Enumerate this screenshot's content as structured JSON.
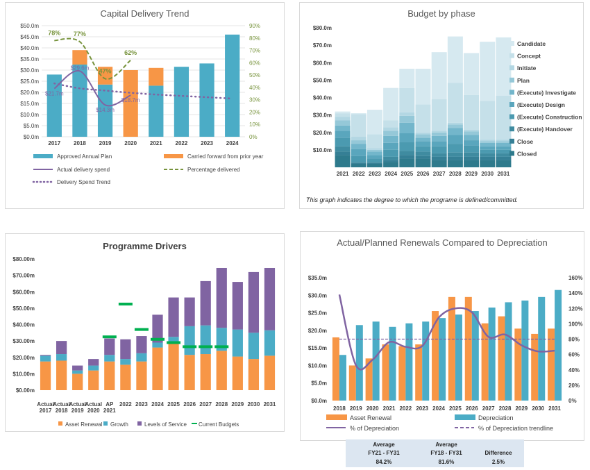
{
  "chart_data": [
    {
      "type": "bar",
      "title": "Capital Delivery Trend",
      "categories": [
        "2017",
        "2018",
        "2019",
        "2020",
        "2021",
        "2022",
        "2023",
        "2024"
      ],
      "ylim": [
        0,
        50
      ],
      "yticks": [
        "$0.0m",
        "$5.0m",
        "$10.0m",
        "$15.0m",
        "$20.0m",
        "$25.0m",
        "$30.0m",
        "$35.0m",
        "$40.0m",
        "$45.0m",
        "$50.0m"
      ],
      "y2lim": [
        0,
        90
      ],
      "y2ticks": [
        "0%",
        "10%",
        "20%",
        "30%",
        "40%",
        "50%",
        "60%",
        "70%",
        "80%",
        "90%"
      ],
      "series": [
        {
          "name": "Approved Annual Plan",
          "type": "bar",
          "color": "#4bacc6",
          "values": [
            28.0,
            32.5,
            23.5,
            0,
            23.0,
            31.5,
            33.0,
            46.0
          ]
        },
        {
          "name": "Carried forward from prior year",
          "type": "bar-stacked",
          "color": "#f79646",
          "values": [
            0,
            6.5,
            8.0,
            30.0,
            8.0,
            0,
            0,
            0
          ]
        },
        {
          "name": "Actual delivery spend",
          "type": "line",
          "color": "#8064a2",
          "values": [
            21.7,
            29.6,
            14.3,
            18.7,
            null,
            null,
            null,
            null
          ]
        },
        {
          "name": "Percentage delivered",
          "type": "line-secondary",
          "color": "#77933c",
          "values": [
            78,
            77,
            47,
            62,
            null,
            null,
            null,
            null
          ]
        },
        {
          "name": "Delivery Spend Trend",
          "type": "trend-dotted",
          "color": "#8064a2",
          "values": [
            24,
            21.8,
            20.8,
            19.8,
            19,
            18.4,
            17.8,
            17.2
          ]
        }
      ],
      "data_labels": [
        "$21.7m",
        "$29.6m",
        "$14.3m",
        "$18.7m",
        "78%",
        "77%",
        "47%",
        "62%"
      ],
      "legend": [
        "Approved Annual Plan",
        "Carried forward from prior year",
        "Actual delivery spend",
        "Percentage delivered",
        "Delivery Spend Trend"
      ]
    },
    {
      "type": "bar",
      "title": "Budget by phase",
      "categories": [
        "2021",
        "2022",
        "2023",
        "2024",
        "2025",
        "2026",
        "2027",
        "2028",
        "2029",
        "2030",
        "2031"
      ],
      "ylim": [
        0,
        80
      ],
      "yticks": [
        "$10.0m",
        "$20.0m",
        "$30.0m",
        "$40.0m",
        "$50.0m",
        "$60.0m",
        "$70.0m",
        "$80.0m"
      ],
      "series": [
        {
          "name": "Closed",
          "color": "#2e7a8c",
          "values": [
            7,
            2,
            2,
            3,
            5,
            5,
            4,
            4,
            4,
            4,
            4
          ]
        },
        {
          "name": "Close",
          "color": "#357f95",
          "values": [
            2,
            0.5,
            0.5,
            1,
            2,
            1.5,
            2,
            2,
            2,
            2,
            2
          ]
        },
        {
          "name": "(Execute) Handover",
          "color": "#3f8ba0",
          "values": [
            3,
            0.5,
            0.5,
            2,
            2.5,
            2.5,
            2,
            2.5,
            2.5,
            2,
            2
          ]
        },
        {
          "name": "(Execute) Construction",
          "color": "#4b9ab0",
          "values": [
            5,
            3.5,
            2,
            4,
            5,
            3,
            4,
            5,
            4,
            2,
            2
          ]
        },
        {
          "name": "(Execute) Design",
          "color": "#5aa6bd",
          "values": [
            4,
            4,
            2,
            4,
            5,
            3,
            3,
            5,
            3,
            2,
            2
          ]
        },
        {
          "name": "(Execute) Investigate",
          "color": "#73b6cb",
          "values": [
            3,
            3,
            2,
            4,
            6,
            2,
            3,
            4,
            3,
            2,
            2
          ]
        },
        {
          "name": "Plan",
          "color": "#95c8d8",
          "values": [
            3,
            2,
            1,
            3,
            4,
            2,
            2,
            2,
            2,
            1,
            1
          ]
        },
        {
          "name": "Initiate",
          "color": "#b3d7e3",
          "values": [
            2,
            2,
            1,
            2,
            2,
            1,
            1,
            1,
            1,
            1,
            1
          ]
        },
        {
          "name": "Concept",
          "color": "#c5e0e9",
          "values": [
            2,
            13,
            8,
            4,
            14,
            16,
            18,
            23,
            20,
            22,
            25
          ]
        },
        {
          "name": "Candidate",
          "color": "#d6e9f0",
          "values": [
            1,
            0.5,
            14,
            18.5,
            11,
            20.5,
            27,
            26.5,
            24,
            34,
            33.5
          ]
        }
      ],
      "legend": [
        "Candidate",
        "Concept",
        "Initiate",
        "Plan",
        "(Execute) Investigate",
        "(Execute) Design",
        "(Execute) Construction",
        "(Execute) Handover",
        "Close",
        "Closed"
      ],
      "note": "This graph indicates the degree to which the programe is defined/committed."
    },
    {
      "type": "bar",
      "title": "Programme Drivers",
      "categories": [
        "Actual 2017",
        "Actual 2018",
        "Actual 2019",
        "Actual 2020",
        "AP 2021",
        "2022",
        "2023",
        "2024",
        "2025",
        "2026",
        "2027",
        "2028",
        "2029",
        "2030",
        "2031"
      ],
      "category_lines": [
        [
          "Actual",
          "2017"
        ],
        [
          "Actual",
          "2018"
        ],
        [
          "Actual",
          "2019"
        ],
        [
          "Actual",
          "2020"
        ],
        [
          "AP",
          "2021"
        ],
        [
          "2022",
          ""
        ],
        [
          "2023",
          ""
        ],
        [
          "2024",
          ""
        ],
        [
          "2025",
          ""
        ],
        [
          "2026",
          ""
        ],
        [
          "2027",
          ""
        ],
        [
          "2028",
          ""
        ],
        [
          "2029",
          ""
        ],
        [
          "2030",
          ""
        ],
        [
          "2031",
          ""
        ]
      ],
      "ylim": [
        0,
        80
      ],
      "yticks": [
        "$0.00m",
        "$10.00m",
        "$20.00m",
        "$30.00m",
        "$40.00m",
        "$50.00m",
        "$60.00m",
        "$70.00m",
        "$80.00m"
      ],
      "series": [
        {
          "name": "Asset Renewal",
          "color": "#f79646",
          "values": [
            17.5,
            18,
            10,
            12,
            17.5,
            15.5,
            17.5,
            26,
            28.5,
            21.5,
            22,
            24,
            20.5,
            19,
            21
          ]
        },
        {
          "name": "Growth",
          "color": "#4bacc6",
          "values": [
            3.5,
            4,
            2,
            3,
            4,
            3.5,
            5,
            3,
            4,
            17.5,
            17.5,
            14,
            16.5,
            16,
            15.5
          ]
        },
        {
          "name": "Levels of Service",
          "color": "#8064a2",
          "values": [
            0.5,
            8,
            3,
            4,
            10,
            12,
            10.5,
            17,
            24,
            17.5,
            27,
            36.5,
            29,
            37,
            38
          ]
        },
        {
          "name": "Current Budgets",
          "color": "#00b050",
          "values": [
            null,
            null,
            null,
            null,
            32.5,
            52.5,
            37,
            31,
            29,
            26.5,
            26.5,
            26.5,
            null,
            null,
            null
          ]
        }
      ],
      "legend": [
        "Asset Renewal",
        "Growth",
        "Levels of Service",
        "Current Budgets"
      ]
    },
    {
      "type": "bar",
      "title": "Actual/Planned Renewals Compared to Depreciation",
      "categories": [
        "2018",
        "2019",
        "2020",
        "2021",
        "2022",
        "2023",
        "2024",
        "2025",
        "2026",
        "2027",
        "2028",
        "2029",
        "2030",
        "2031"
      ],
      "ylim": [
        0,
        35
      ],
      "yticks": [
        "$0.0m",
        "$5.0m",
        "$10.0m",
        "$15.0m",
        "$20.0m",
        "$25.0m",
        "$30.0m",
        "$35.0m"
      ],
      "y2lim": [
        0,
        160
      ],
      "y2ticks": [
        "0%",
        "20%",
        "40%",
        "60%",
        "80%",
        "100%",
        "120%",
        "140%",
        "160%"
      ],
      "series": [
        {
          "name": "Asset Renewal",
          "color": "#f79646",
          "values": [
            18,
            10,
            12,
            16,
            15.5,
            16,
            25.5,
            29.5,
            29.5,
            22,
            24,
            20.5,
            19,
            20.5
          ]
        },
        {
          "name": "Depreciation",
          "color": "#4bacc6",
          "values": [
            13,
            21.5,
            22.5,
            21,
            22,
            22.5,
            23.5,
            24.5,
            25.5,
            26.5,
            28,
            28.5,
            29.5,
            31.5
          ]
        },
        {
          "name": "% of Depreciation",
          "color": "#8064a2",
          "values": [
            138,
            46,
            53,
            76,
            70,
            71,
            108,
            120,
            115,
            83,
            86,
            72,
            64,
            65
          ]
        },
        {
          "name": "% of Depreciation trendline",
          "color": "#8064a2",
          "values": [
            80,
            80,
            80,
            80,
            80,
            80,
            80,
            80,
            80,
            80,
            80,
            80,
            80,
            80
          ]
        }
      ],
      "legend": [
        "Asset Renewal",
        "Depreciation",
        "% of Depreciation",
        "% of Depreciation trendline"
      ]
    }
  ],
  "summary": {
    "h1a": "Average",
    "h1b": "FY21 - FY31",
    "v1": "84.2%",
    "h2a": "Average",
    "h2b": "FY18 - FY31",
    "v2": "81.6%",
    "h3": "Difference",
    "v3": "2.5%"
  }
}
